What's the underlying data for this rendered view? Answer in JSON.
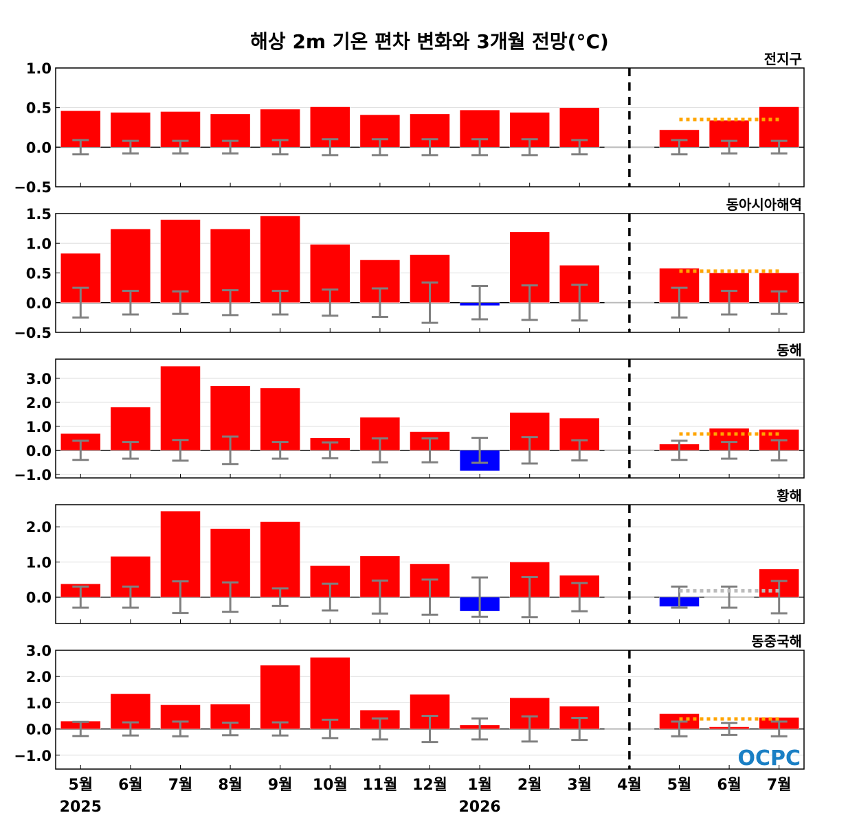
{
  "chart_data": {
    "type": "bar",
    "title": "해상 2m 기온 편차 변화와 3개월 전망(°C)",
    "categories": [
      "5월",
      "6월",
      "7월",
      "8월",
      "9월",
      "10월",
      "11월",
      "12월",
      "1월",
      "2월",
      "3월",
      "4월",
      "5월",
      "6월",
      "7월"
    ],
    "year_labels": [
      {
        "label": "2025",
        "category_index": 0
      },
      {
        "label": "2026",
        "category_index": 8
      }
    ],
    "forecast_divider_category": "4월",
    "grid": true,
    "colors": {
      "positive": "#ff0000",
      "negative": "#0000ff",
      "error_bar": "#808080",
      "outlook_warm": "#ffa500",
      "outlook_normal": "#bbbbbb",
      "zero_line": "#bbbbbb"
    },
    "logo": "OCPC",
    "panels": [
      {
        "name": "전지구",
        "ylim": [
          -0.5,
          1.0
        ],
        "yticks": [
          -0.5,
          0.0,
          0.5,
          1.0
        ],
        "tick_labels": [
          "−0.5",
          "0.0",
          "0.5",
          "1.0"
        ],
        "values": [
          0.46,
          0.44,
          0.45,
          0.42,
          0.48,
          0.51,
          0.41,
          0.42,
          0.47,
          0.44,
          0.5,
          0.0,
          0.22,
          0.34,
          0.51
        ],
        "errors": [
          0.09,
          0.08,
          0.08,
          0.08,
          0.09,
          0.1,
          0.1,
          0.1,
          0.1,
          0.1,
          0.09,
          null,
          0.09,
          0.08,
          0.08
        ],
        "outlook": {
          "value": 0.35,
          "color": "#ffa500"
        }
      },
      {
        "name": "동아시아해역",
        "ylim": [
          -0.5,
          1.5
        ],
        "yticks": [
          -0.5,
          0.0,
          0.5,
          1.0,
          1.5
        ],
        "tick_labels": [
          "−0.5",
          "0.0",
          "0.5",
          "1.0",
          "1.5"
        ],
        "values": [
          0.83,
          1.24,
          1.4,
          1.24,
          1.46,
          0.98,
          0.72,
          0.81,
          -0.05,
          1.19,
          0.63,
          0.0,
          0.58,
          0.5,
          0.5
        ],
        "errors": [
          0.25,
          0.2,
          0.19,
          0.21,
          0.2,
          0.22,
          0.24,
          0.34,
          0.28,
          0.29,
          0.3,
          null,
          0.25,
          0.2,
          0.19
        ],
        "outlook": {
          "value": 0.53,
          "color": "#ffa500"
        }
      },
      {
        "name": "동해",
        "ylim": [
          -1.15,
          3.8
        ],
        "yticks": [
          -1.0,
          0.0,
          1.0,
          2.0,
          3.0
        ],
        "tick_labels": [
          "−1.0",
          "0.0",
          "1.0",
          "2.0",
          "3.0"
        ],
        "values": [
          0.7,
          1.8,
          3.51,
          2.69,
          2.6,
          0.52,
          1.38,
          0.78,
          -0.86,
          1.58,
          1.34,
          0.0,
          0.26,
          0.92,
          0.87
        ],
        "errors": [
          0.4,
          0.35,
          0.43,
          0.57,
          0.35,
          0.33,
          0.5,
          0.5,
          0.52,
          0.55,
          0.42,
          null,
          0.4,
          0.35,
          0.42
        ],
        "outlook": {
          "value": 0.68,
          "color": "#ffa500"
        }
      },
      {
        "name": "황해",
        "ylim": [
          -0.75,
          2.63
        ],
        "yticks": [
          0.0,
          1.0,
          2.0
        ],
        "tick_labels": [
          "0.0",
          "1.0",
          "2.0"
        ],
        "values": [
          0.38,
          1.16,
          2.45,
          1.95,
          2.15,
          0.9,
          1.17,
          0.95,
          -0.4,
          1.0,
          0.62,
          0.0,
          -0.27,
          0.0,
          0.8
        ],
        "errors": [
          0.3,
          0.3,
          0.45,
          0.42,
          0.25,
          0.38,
          0.47,
          0.5,
          0.56,
          0.57,
          0.4,
          null,
          0.3,
          0.3,
          0.46
        ],
        "outlook": {
          "value": 0.18,
          "color": "#bbbbbb"
        }
      },
      {
        "name": "동중국해",
        "ylim": [
          -1.53,
          3.0
        ],
        "yticks": [
          -1.0,
          0.0,
          1.0,
          2.0,
          3.0
        ],
        "tick_labels": [
          "−1.0",
          "0.0",
          "1.0",
          "2.0",
          "3.0"
        ],
        "values": [
          0.3,
          1.34,
          0.92,
          0.95,
          2.43,
          2.73,
          0.72,
          1.32,
          0.15,
          1.19,
          0.87,
          0.0,
          0.58,
          0.08,
          0.44
        ],
        "errors": [
          0.27,
          0.25,
          0.28,
          0.24,
          0.25,
          0.35,
          0.4,
          0.5,
          0.4,
          0.48,
          0.42,
          null,
          0.28,
          0.23,
          0.28
        ],
        "outlook": {
          "value": 0.38,
          "color": "#ffa500"
        }
      }
    ]
  }
}
